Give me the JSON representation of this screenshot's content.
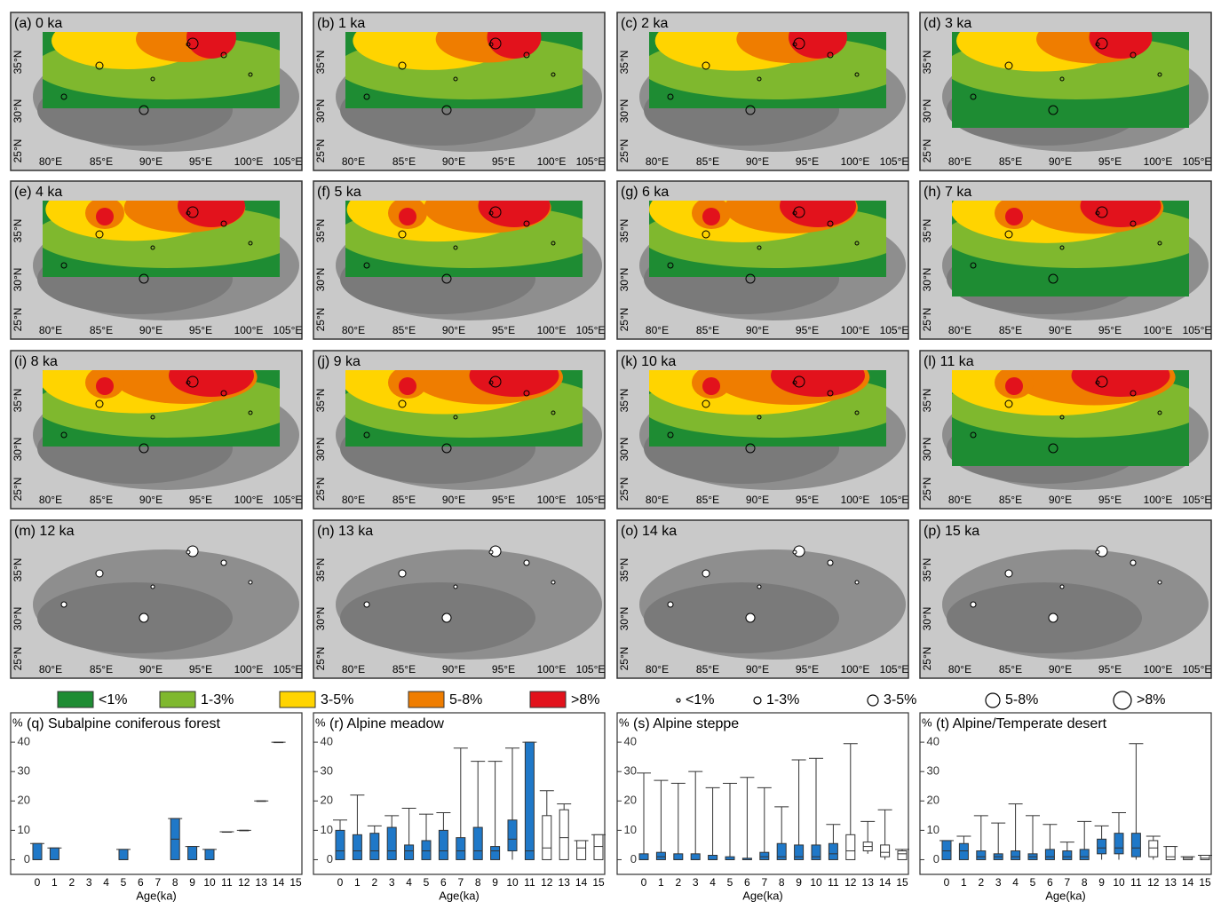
{
  "maps": {
    "panel_titles": [
      "(a) 0 ka",
      "(b) 1 ka",
      "(c) 2 ka",
      "(d) 3 ka",
      "(e) 4 ka",
      "(f) 5 ka",
      "(g) 6 ka",
      "(h) 7 ka",
      "(i) 8 ka",
      "(j) 9 ka",
      "(k) 10 ka",
      "(l) 11 ka",
      "(m) 12 ka",
      "(n) 13 ka",
      "(o) 14 ka",
      "(p) 15 ka"
    ],
    "xticks": [
      "80°E",
      "85°E",
      "90°E",
      "95°E",
      "100°E",
      "105°E"
    ],
    "yticks": [
      "25°N",
      "30°N",
      "35°N"
    ],
    "color_legend": [
      {
        "label": "<1%",
        "color": "#1e8c33"
      },
      {
        "label": "1-3%",
        "color": "#7fb82e"
      },
      {
        "label": "3-5%",
        "color": "#ffd400"
      },
      {
        "label": "5-8%",
        "color": "#ef7d00"
      },
      {
        "label": ">8%",
        "color": "#e2121c"
      }
    ],
    "size_legend": [
      "<1%",
      "1-3%",
      "3-5%",
      "5-8%",
      ">8%"
    ]
  },
  "chart_data": [
    {
      "type": "box",
      "title": "(q) Subalpine coniferous forest",
      "y_unit": "%",
      "xlabel": "Age(ka)",
      "categories": [
        0,
        1,
        2,
        3,
        4,
        5,
        6,
        7,
        8,
        9,
        10,
        11,
        12,
        13,
        14,
        15
      ],
      "ylim": [
        -5,
        50
      ],
      "yticks": [
        0,
        10,
        20,
        30,
        40
      ],
      "box_colors": [
        "#1f78c8",
        "#1f78c8",
        "#1f78c8",
        "#1f78c8",
        "#1f78c8",
        "#1f78c8",
        "#1f78c8",
        "#1f78c8",
        "#1f78c8",
        "#1f78c8",
        "#1f78c8",
        "#1f78c8",
        "#ffffff",
        "#ffffff",
        "#ffffff",
        "#ffffff"
      ],
      "min": [
        0,
        0,
        null,
        null,
        null,
        0,
        null,
        null,
        0,
        0,
        0,
        9.5,
        10,
        20,
        40,
        null
      ],
      "q1": [
        0,
        0,
        null,
        null,
        null,
        0,
        null,
        null,
        0,
        0,
        0,
        9.5,
        10,
        20,
        40,
        null
      ],
      "median": [
        0,
        0,
        null,
        null,
        null,
        0,
        null,
        null,
        7,
        0,
        0,
        9.5,
        10,
        20,
        40,
        null
      ],
      "q3": [
        5.5,
        4,
        null,
        null,
        null,
        3.5,
        null,
        null,
        14,
        4.5,
        3.5,
        9.5,
        10,
        20,
        40,
        null
      ],
      "max": [
        5.5,
        4,
        null,
        null,
        null,
        3.5,
        null,
        null,
        14,
        4.5,
        3.5,
        9.5,
        10,
        20,
        40,
        null
      ]
    },
    {
      "type": "box",
      "title": "(r) Alpine meadow",
      "y_unit": "%",
      "xlabel": "Age(ka)",
      "categories": [
        0,
        1,
        2,
        3,
        4,
        5,
        6,
        7,
        8,
        9,
        10,
        11,
        12,
        13,
        14,
        15
      ],
      "ylim": [
        -5,
        50
      ],
      "yticks": [
        0,
        10,
        20,
        30,
        40
      ],
      "box_colors": [
        "#1f78c8",
        "#1f78c8",
        "#1f78c8",
        "#1f78c8",
        "#1f78c8",
        "#1f78c8",
        "#1f78c8",
        "#1f78c8",
        "#1f78c8",
        "#1f78c8",
        "#1f78c8",
        "#1f78c8",
        "#ffffff",
        "#ffffff",
        "#ffffff",
        "#ffffff"
      ],
      "min": [
        0,
        0,
        0,
        0,
        0,
        0,
        0,
        0,
        0,
        0,
        0,
        0,
        0,
        0,
        0,
        0
      ],
      "q1": [
        0,
        0,
        0,
        0,
        0,
        0,
        0,
        0,
        0,
        0,
        3,
        0,
        0,
        0,
        0,
        0
      ],
      "median": [
        3,
        3,
        3,
        3,
        3,
        3,
        3,
        3,
        3,
        3,
        7,
        3,
        4,
        7.5,
        4,
        4.5
      ],
      "q3": [
        10,
        8.5,
        9,
        11,
        5,
        6.5,
        10,
        7.5,
        11,
        4.5,
        13.5,
        40,
        15,
        17,
        6.5,
        8.5
      ],
      "max": [
        13.5,
        22,
        11.5,
        15,
        17.5,
        15.5,
        16,
        38,
        33.5,
        33.5,
        38,
        40,
        23.5,
        19,
        6.5,
        8.5
      ]
    },
    {
      "type": "box",
      "title": "(s) Alpine steppe",
      "y_unit": "%",
      "xlabel": "Age(ka)",
      "categories": [
        0,
        1,
        2,
        3,
        4,
        5,
        6,
        7,
        8,
        9,
        10,
        11,
        12,
        13,
        14,
        15
      ],
      "ylim": [
        -5,
        50
      ],
      "yticks": [
        0,
        10,
        20,
        30,
        40
      ],
      "box_colors": [
        "#1f78c8",
        "#1f78c8",
        "#1f78c8",
        "#1f78c8",
        "#1f78c8",
        "#1f78c8",
        "#1f78c8",
        "#1f78c8",
        "#1f78c8",
        "#1f78c8",
        "#1f78c8",
        "#1f78c8",
        "#ffffff",
        "#ffffff",
        "#ffffff",
        "#ffffff"
      ],
      "min": [
        0,
        0,
        0,
        0,
        0,
        0,
        0,
        0,
        0,
        0,
        0,
        0,
        0,
        2,
        0,
        0
      ],
      "q1": [
        0,
        0,
        0,
        0,
        0,
        0,
        0,
        0,
        0,
        0,
        0,
        0,
        0,
        3,
        1,
        0
      ],
      "median": [
        0,
        1,
        0,
        0,
        0,
        0,
        0,
        1,
        1,
        1,
        1,
        2,
        3,
        4.5,
        2.5,
        2
      ],
      "q3": [
        2,
        2.5,
        2,
        2,
        1.5,
        1,
        0.5,
        2.5,
        5.5,
        5,
        5,
        5.5,
        8.5,
        6,
        5,
        3
      ],
      "max": [
        29.5,
        27,
        26,
        30,
        24.5,
        26,
        28,
        24.5,
        18,
        34,
        34.5,
        12,
        39.5,
        13,
        17,
        3.5
      ]
    },
    {
      "type": "box",
      "title": "(t) Alpine/Temperate desert",
      "y_unit": "%",
      "xlabel": "Age(ka)",
      "categories": [
        0,
        1,
        2,
        3,
        4,
        5,
        6,
        7,
        8,
        9,
        10,
        11,
        12,
        13,
        14,
        15
      ],
      "ylim": [
        -5,
        50
      ],
      "yticks": [
        0,
        10,
        20,
        30,
        40
      ],
      "box_colors": [
        "#1f78c8",
        "#1f78c8",
        "#1f78c8",
        "#1f78c8",
        "#1f78c8",
        "#1f78c8",
        "#1f78c8",
        "#1f78c8",
        "#1f78c8",
        "#1f78c8",
        "#1f78c8",
        "#1f78c8",
        "#ffffff",
        "#ffffff",
        "#ffffff",
        "#ffffff"
      ],
      "min": [
        0,
        0,
        0,
        0,
        0,
        0,
        0,
        0,
        0,
        0,
        0,
        0,
        0,
        0,
        0,
        0
      ],
      "q1": [
        0,
        0,
        0,
        0,
        0,
        0,
        0,
        0,
        0,
        2,
        2,
        1,
        1,
        0,
        0,
        0
      ],
      "median": [
        3,
        3,
        1,
        1,
        1,
        1,
        1,
        1,
        1,
        4,
        4,
        4,
        4,
        1,
        0.5,
        0.5
      ],
      "q3": [
        6.5,
        5.5,
        3,
        2,
        3,
        2,
        3.5,
        3,
        3.5,
        7,
        9,
        9,
        6.5,
        4.5,
        1,
        1.5
      ],
      "max": [
        6.5,
        8,
        15,
        12.5,
        19,
        15,
        12,
        6,
        13,
        11.5,
        16,
        39.5,
        8,
        4.5,
        1,
        1.5
      ]
    }
  ]
}
